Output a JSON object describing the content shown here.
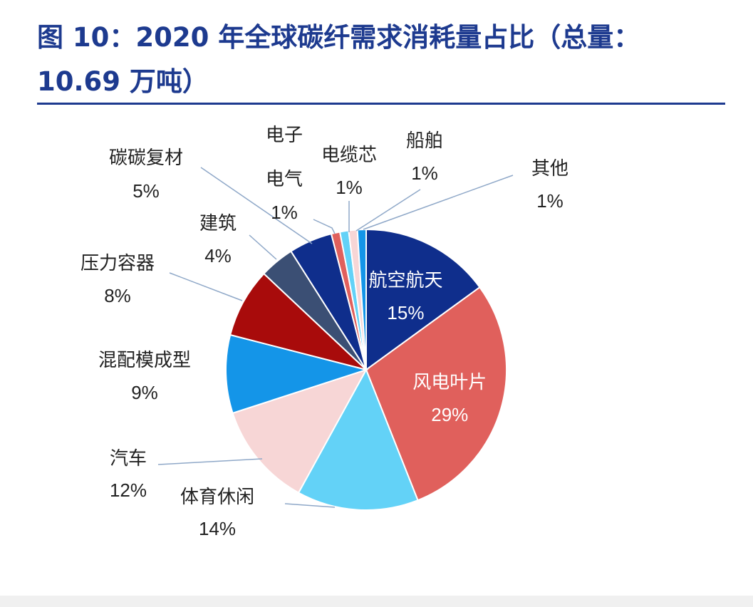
{
  "header": {
    "title": "图 10：2020 年全球碳纤需求消耗量占比（总量：10.69 万吨）"
  },
  "colors": {
    "title": "#1d3a8f",
    "label_text": "#222222",
    "inner_label_text": "#ffffff",
    "leader_line": "#8fa8c8"
  },
  "chart_data": {
    "type": "pie",
    "title": "图 10：2020 年全球碳纤需求消耗量占比（总量：10.69 万吨）",
    "total": "10.69 万吨",
    "slices": [
      {
        "name": "航空航天",
        "value": 15,
        "label": "15%",
        "color": "#0f2e8c",
        "label_position": "inside"
      },
      {
        "name": "风电叶片",
        "value": 29,
        "label": "29%",
        "color": "#e0605c",
        "label_position": "inside"
      },
      {
        "name": "体育休闲",
        "value": 14,
        "label": "14%",
        "color": "#63d2f7",
        "label_position": "outside"
      },
      {
        "name": "汽车",
        "value": 12,
        "label": "12%",
        "color": "#f7d6d6",
        "label_position": "outside"
      },
      {
        "name": "混配模成型",
        "value": 9,
        "label": "9%",
        "color": "#1495e8",
        "label_position": "outside"
      },
      {
        "name": "压力容器",
        "value": 8,
        "label": "8%",
        "color": "#a80b0b",
        "label_position": "outside"
      },
      {
        "name": "建筑",
        "value": 4,
        "label": "4%",
        "color": "#3b4f74",
        "label_position": "outside"
      },
      {
        "name": "碳碳复材",
        "value": 5,
        "label": "5%",
        "color": "#0f2e8c",
        "label_position": "outside"
      },
      {
        "name": "电子电气",
        "value": 1,
        "label": "1%",
        "color": "#e0605c",
        "label_position": "outside"
      },
      {
        "name": "电缆芯",
        "value": 1,
        "label": "1%",
        "color": "#63d2f7",
        "label_position": "outside"
      },
      {
        "name": "船舶",
        "value": 1,
        "label": "1%",
        "color": "#f7d6d6",
        "label_position": "outside"
      },
      {
        "name": "其他",
        "value": 1,
        "label": "1%",
        "color": "#1495e8",
        "label_position": "outside"
      }
    ]
  }
}
